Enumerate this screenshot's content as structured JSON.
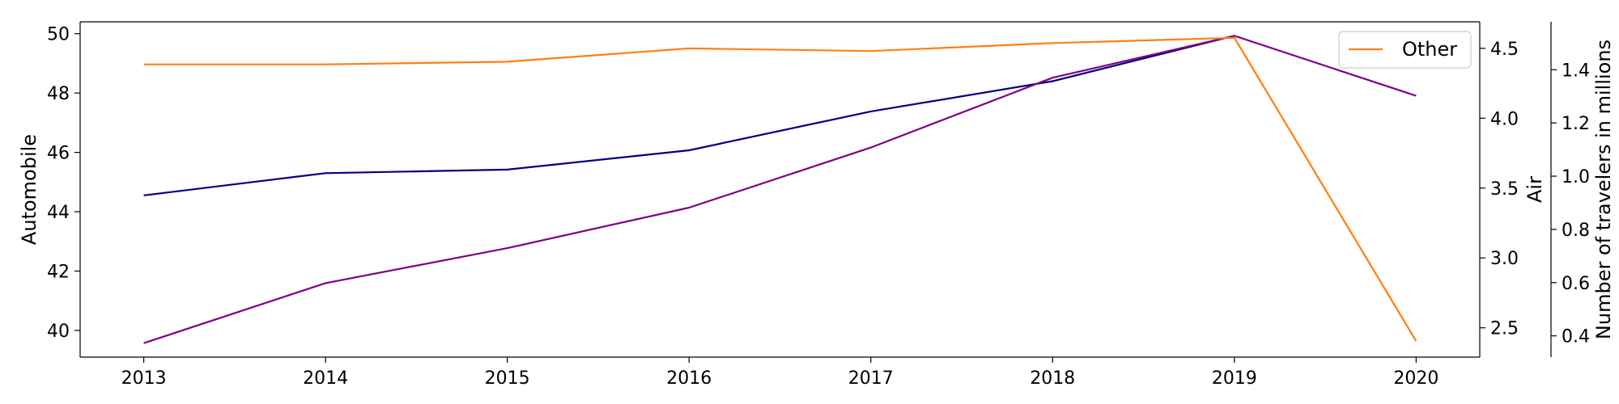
{
  "chart_data": {
    "type": "line",
    "x": [
      2013,
      2014,
      2015,
      2016,
      2017,
      2018,
      2019,
      2020
    ],
    "series": [
      {
        "name": "Automobile",
        "axis": "left",
        "color": "#00007f",
        "values": [
          44.55,
          45.3,
          45.42,
          46.07,
          47.38,
          48.4,
          49.93,
          null
        ]
      },
      {
        "name": "Air",
        "axis": "right1",
        "color": "#800080",
        "values": [
          2.39,
          2.82,
          3.07,
          3.36,
          3.79,
          4.29,
          4.59,
          4.16
        ]
      },
      {
        "name": "Other",
        "axis": "right2",
        "color": "#ff7f0e",
        "values": [
          1.42,
          1.42,
          1.43,
          1.48,
          1.47,
          1.5,
          1.52,
          0.38
        ]
      }
    ],
    "axes": {
      "x": {
        "ticks": [
          2013,
          2014,
          2015,
          2016,
          2017,
          2018,
          2019,
          2020
        ],
        "lim": [
          2012.65,
          2020.35
        ]
      },
      "left": {
        "label": "Automobile",
        "ticks": [
          40,
          42,
          44,
          46,
          48,
          50
        ],
        "lim": [
          39.1,
          50.4
        ]
      },
      "right1": {
        "label": "Air",
        "ticks": [
          2.5,
          3.0,
          3.5,
          4.0,
          4.5
        ],
        "lim": [
          2.29,
          4.69
        ]
      },
      "right2": {
        "label": "Number of travelers in millions",
        "ticks": [
          0.4,
          0.6,
          0.8,
          1.0,
          1.2,
          1.4
        ],
        "lim": [
          0.32,
          1.58
        ]
      }
    },
    "legend": {
      "entries": [
        "Other"
      ],
      "placement": "top-right"
    },
    "grid": false
  }
}
